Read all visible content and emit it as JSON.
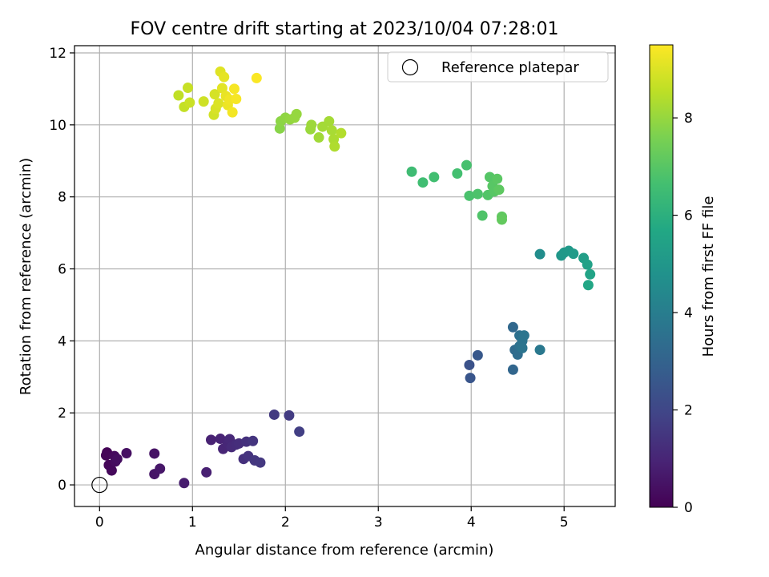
{
  "chart_data": {
    "type": "scatter",
    "title": "FOV centre drift starting at 2023/10/04 07:28:01",
    "xlabel": "Angular distance from reference (arcmin)",
    "ylabel": "Rotation from reference (arcmin)",
    "xlim": [
      -0.27,
      5.55
    ],
    "ylim": [
      -0.6,
      12.2
    ],
    "x_ticks": [
      0,
      1,
      2,
      3,
      4,
      5
    ],
    "y_ticks": [
      0,
      2,
      4,
      6,
      8,
      10,
      12
    ],
    "grid": true,
    "legend": {
      "placement": "top-right",
      "entries": [
        "Reference platepar"
      ]
    },
    "reference_point": {
      "x": 0,
      "y": 0
    },
    "colorbar": {
      "label": "Hours from first FF file",
      "colormap": "viridis",
      "range": [
        0,
        9.5
      ],
      "ticks": [
        0,
        2,
        4,
        6,
        8
      ]
    },
    "points": [
      {
        "x": 0.08,
        "y": 0.9,
        "c": 0.05
      },
      {
        "x": 0.07,
        "y": 0.82,
        "c": 0.1
      },
      {
        "x": 0.1,
        "y": 0.55,
        "c": 0.15
      },
      {
        "x": 0.13,
        "y": 0.4,
        "c": 0.2
      },
      {
        "x": 0.16,
        "y": 0.8,
        "c": 0.25
      },
      {
        "x": 0.17,
        "y": 0.65,
        "c": 0.3
      },
      {
        "x": 0.19,
        "y": 0.72,
        "c": 0.35
      },
      {
        "x": 0.29,
        "y": 0.88,
        "c": 0.4
      },
      {
        "x": 0.59,
        "y": 0.87,
        "c": 0.5
      },
      {
        "x": 0.59,
        "y": 0.3,
        "c": 0.55
      },
      {
        "x": 0.65,
        "y": 0.45,
        "c": 0.6
      },
      {
        "x": 0.91,
        "y": 0.05,
        "c": 0.75
      },
      {
        "x": 1.15,
        "y": 0.35,
        "c": 0.85
      },
      {
        "x": 1.2,
        "y": 1.25,
        "c": 0.9
      },
      {
        "x": 1.3,
        "y": 1.28,
        "c": 0.95
      },
      {
        "x": 1.33,
        "y": 1.0,
        "c": 1.0
      },
      {
        "x": 1.38,
        "y": 1.15,
        "c": 1.05
      },
      {
        "x": 1.4,
        "y": 1.27,
        "c": 1.1
      },
      {
        "x": 1.42,
        "y": 1.05,
        "c": 1.15
      },
      {
        "x": 1.47,
        "y": 1.12,
        "c": 1.2
      },
      {
        "x": 1.5,
        "y": 1.15,
        "c": 1.25
      },
      {
        "x": 1.55,
        "y": 0.72,
        "c": 1.3
      },
      {
        "x": 1.58,
        "y": 1.2,
        "c": 1.35
      },
      {
        "x": 1.6,
        "y": 0.8,
        "c": 1.4
      },
      {
        "x": 1.65,
        "y": 1.22,
        "c": 1.45
      },
      {
        "x": 1.67,
        "y": 0.68,
        "c": 1.5
      },
      {
        "x": 1.73,
        "y": 0.62,
        "c": 1.55
      },
      {
        "x": 1.88,
        "y": 1.95,
        "c": 1.6
      },
      {
        "x": 2.04,
        "y": 1.93,
        "c": 1.65
      },
      {
        "x": 2.15,
        "y": 1.48,
        "c": 1.75
      },
      {
        "x": 3.98,
        "y": 3.33,
        "c": 2.4
      },
      {
        "x": 3.99,
        "y": 2.97,
        "c": 2.5
      },
      {
        "x": 4.07,
        "y": 3.6,
        "c": 2.6
      },
      {
        "x": 4.45,
        "y": 3.2,
        "c": 3.1
      },
      {
        "x": 4.45,
        "y": 4.38,
        "c": 3.2
      },
      {
        "x": 4.47,
        "y": 3.75,
        "c": 3.3
      },
      {
        "x": 4.5,
        "y": 3.62,
        "c": 3.4
      },
      {
        "x": 4.52,
        "y": 4.15,
        "c": 3.5
      },
      {
        "x": 4.52,
        "y": 3.85,
        "c": 3.55
      },
      {
        "x": 4.55,
        "y": 4.0,
        "c": 3.6
      },
      {
        "x": 4.55,
        "y": 3.8,
        "c": 3.65
      },
      {
        "x": 4.57,
        "y": 4.15,
        "c": 3.7
      },
      {
        "x": 4.74,
        "y": 3.75,
        "c": 3.8
      },
      {
        "x": 4.74,
        "y": 6.41,
        "c": 4.6
      },
      {
        "x": 4.97,
        "y": 6.37,
        "c": 5.0
      },
      {
        "x": 5.0,
        "y": 6.45,
        "c": 5.05
      },
      {
        "x": 5.05,
        "y": 6.5,
        "c": 5.1
      },
      {
        "x": 5.1,
        "y": 6.42,
        "c": 5.15
      },
      {
        "x": 5.21,
        "y": 6.3,
        "c": 5.3
      },
      {
        "x": 5.25,
        "y": 6.12,
        "c": 5.4
      },
      {
        "x": 5.28,
        "y": 5.85,
        "c": 5.5
      },
      {
        "x": 5.26,
        "y": 5.55,
        "c": 5.6
      },
      {
        "x": 3.36,
        "y": 8.7,
        "c": 6.5
      },
      {
        "x": 3.48,
        "y": 8.4,
        "c": 6.55
      },
      {
        "x": 3.6,
        "y": 8.55,
        "c": 6.6
      },
      {
        "x": 3.85,
        "y": 8.65,
        "c": 6.65
      },
      {
        "x": 3.95,
        "y": 8.88,
        "c": 6.7
      },
      {
        "x": 3.98,
        "y": 8.03,
        "c": 6.75
      },
      {
        "x": 4.07,
        "y": 8.08,
        "c": 6.8
      },
      {
        "x": 4.12,
        "y": 7.48,
        "c": 6.85
      },
      {
        "x": 4.18,
        "y": 8.05,
        "c": 6.9
      },
      {
        "x": 4.2,
        "y": 8.55,
        "c": 6.95
      },
      {
        "x": 4.23,
        "y": 8.3,
        "c": 7.0
      },
      {
        "x": 4.25,
        "y": 8.15,
        "c": 7.0
      },
      {
        "x": 4.28,
        "y": 8.5,
        "c": 7.05
      },
      {
        "x": 4.3,
        "y": 8.2,
        "c": 7.1
      },
      {
        "x": 4.33,
        "y": 7.45,
        "c": 7.15
      },
      {
        "x": 4.33,
        "y": 7.37,
        "c": 7.2
      },
      {
        "x": 1.94,
        "y": 9.9,
        "c": 7.8
      },
      {
        "x": 1.95,
        "y": 10.1,
        "c": 7.85
      },
      {
        "x": 2.0,
        "y": 10.2,
        "c": 7.9
      },
      {
        "x": 2.05,
        "y": 10.15,
        "c": 7.95
      },
      {
        "x": 2.1,
        "y": 10.2,
        "c": 8.0
      },
      {
        "x": 2.12,
        "y": 10.3,
        "c": 8.0
      },
      {
        "x": 2.27,
        "y": 9.88,
        "c": 8.05
      },
      {
        "x": 2.28,
        "y": 10.0,
        "c": 8.1
      },
      {
        "x": 2.36,
        "y": 9.65,
        "c": 8.15
      },
      {
        "x": 2.4,
        "y": 9.95,
        "c": 8.2
      },
      {
        "x": 2.47,
        "y": 10.1,
        "c": 8.2
      },
      {
        "x": 2.5,
        "y": 9.85,
        "c": 8.25
      },
      {
        "x": 2.52,
        "y": 9.6,
        "c": 8.3
      },
      {
        "x": 2.53,
        "y": 9.4,
        "c": 8.35
      },
      {
        "x": 2.6,
        "y": 9.77,
        "c": 8.4
      },
      {
        "x": 0.85,
        "y": 10.82,
        "c": 8.6
      },
      {
        "x": 0.91,
        "y": 10.5,
        "c": 8.65
      },
      {
        "x": 0.95,
        "y": 11.03,
        "c": 8.7
      },
      {
        "x": 0.97,
        "y": 10.62,
        "c": 8.75
      },
      {
        "x": 1.12,
        "y": 10.65,
        "c": 8.8
      },
      {
        "x": 1.23,
        "y": 10.28,
        "c": 8.85
      },
      {
        "x": 1.24,
        "y": 10.85,
        "c": 8.9
      },
      {
        "x": 1.25,
        "y": 10.45,
        "c": 8.95
      },
      {
        "x": 1.28,
        "y": 10.6,
        "c": 9.0
      },
      {
        "x": 1.3,
        "y": 11.48,
        "c": 9.05
      },
      {
        "x": 1.32,
        "y": 11.02,
        "c": 9.1
      },
      {
        "x": 1.34,
        "y": 11.33,
        "c": 9.15
      },
      {
        "x": 1.36,
        "y": 10.8,
        "c": 9.2
      },
      {
        "x": 1.38,
        "y": 10.55,
        "c": 9.25
      },
      {
        "x": 1.4,
        "y": 10.7,
        "c": 9.3
      },
      {
        "x": 1.43,
        "y": 10.35,
        "c": 9.35
      },
      {
        "x": 1.45,
        "y": 11.0,
        "c": 9.4
      },
      {
        "x": 1.47,
        "y": 10.72,
        "c": 9.4
      },
      {
        "x": 1.69,
        "y": 11.3,
        "c": 9.45
      }
    ]
  }
}
